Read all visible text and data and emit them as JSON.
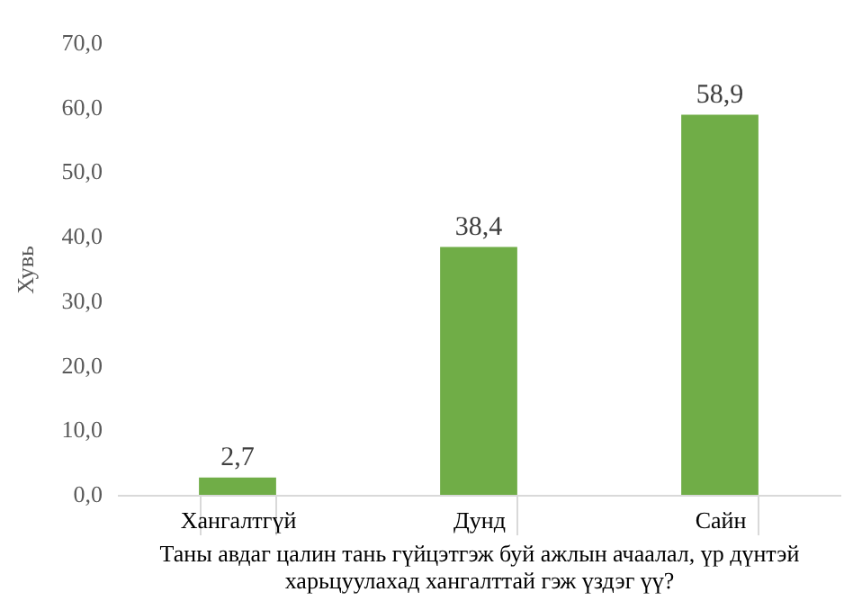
{
  "chart_data": {
    "type": "bar",
    "categories": [
      "Хангалтгүй",
      "Дунд",
      "Сайн"
    ],
    "values": [
      2.7,
      38.4,
      58.9
    ],
    "color": "#70ad47",
    "value_labels": [
      "2,7",
      "38,4",
      "58,9"
    ],
    "ylabel": "Хувь",
    "xlabel": "Таны авдаг цалин тань гүйцэтгэж буй ажлын ачаалал, үр дүнтэй харьцуулахад хангалттай гэж үздэг үү?",
    "ylim": [
      0,
      70
    ],
    "yticks": [
      {
        "value": 0,
        "label": "0,0"
      },
      {
        "value": 10,
        "label": "10,0"
      },
      {
        "value": 20,
        "label": "20,0"
      },
      {
        "value": 30,
        "label": "30,0"
      },
      {
        "value": 40,
        "label": "40,0"
      },
      {
        "value": 50,
        "label": "50,0"
      },
      {
        "value": 60,
        "label": "60,0"
      },
      {
        "value": 70,
        "label": "70,0"
      }
    ],
    "grid": false
  }
}
